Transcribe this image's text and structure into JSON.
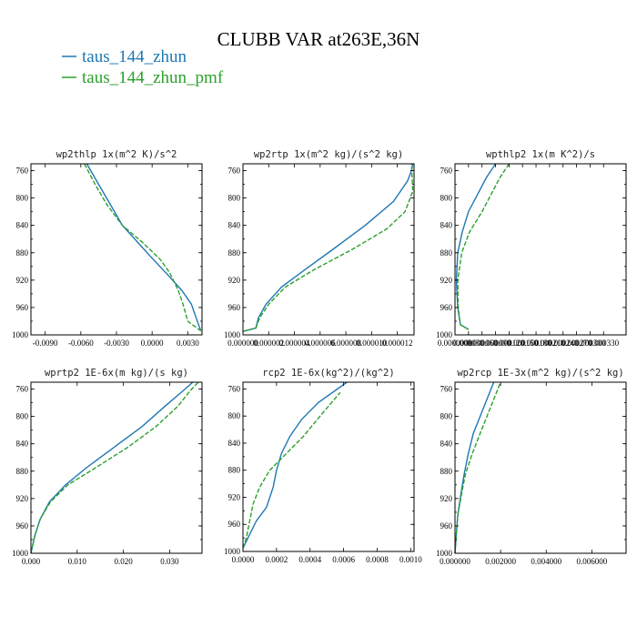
{
  "title": "CLUBB VAR at263E,36N",
  "colors": {
    "zhun": "#1f77b4",
    "pmf": "#2ca02c"
  },
  "legend": [
    {
      "label": "taus_144_zhun",
      "series": "zhun"
    },
    {
      "label": "taus_144_zhun_pmf",
      "series": "pmf"
    }
  ],
  "chart_data": [
    {
      "type": "line",
      "title": "wp2thlp  1x(m^2 K)/s^2",
      "xlim": [
        -0.0102,
        0.0042
      ],
      "ylim": [
        750,
        1000
      ],
      "xticks": [
        -0.009,
        -0.006,
        -0.003,
        0.0,
        0.003
      ],
      "xtick_labels": [
        "-0.0090",
        "-0.0060",
        "-0.0030",
        "0.0000",
        "0.0030"
      ],
      "yticks": [
        760,
        800,
        840,
        880,
        920,
        960,
        1000
      ],
      "ytick_labels": [
        "760",
        "800",
        "840",
        "880",
        "920",
        "960",
        "1000"
      ],
      "series": [
        {
          "name": "taus_144_zhun",
          "color": "zhun",
          "dashed": false,
          "x": [
            -0.0055,
            -0.0045,
            -0.0035,
            -0.0025,
            -0.0012,
            0.0,
            0.0012,
            0.0025,
            0.0033,
            0.0037,
            0.0041
          ],
          "y": [
            750,
            780,
            810,
            840,
            865,
            888,
            910,
            935,
            955,
            975,
            994
          ]
        },
        {
          "name": "taus_144_zhun_pmf",
          "color": "pmf",
          "dashed": true,
          "x": [
            -0.0057,
            -0.0048,
            -0.0038,
            -0.0025,
            -0.0008,
            0.0007,
            0.0015,
            0.0022,
            0.0026,
            0.003,
            0.0041
          ],
          "y": [
            750,
            780,
            810,
            840,
            865,
            890,
            910,
            935,
            955,
            980,
            994
          ]
        }
      ]
    },
    {
      "type": "line",
      "title": "wp2rtp  1x(m^2 kg)/(s^2 kg)",
      "xlim": [
        0.0,
        1.33e-05
      ],
      "ylim": [
        750,
        1000
      ],
      "xticks": [
        0.0,
        2e-06,
        4e-06,
        6e-06,
        8e-06,
        1e-05,
        1.2e-05
      ],
      "xtick_labels": [
        "0.000000",
        "0.000002",
        "0.000004",
        "0.000006",
        "0.000008",
        "0.000010",
        "0.000012"
      ],
      "yticks": [
        760,
        800,
        840,
        880,
        920,
        960,
        1000
      ],
      "ytick_labels": [
        "760",
        "800",
        "840",
        "880",
        "920",
        "960",
        "1000"
      ],
      "series": [
        {
          "name": "taus_144_zhun",
          "color": "zhun",
          "dashed": false,
          "x": [
            0.0,
            1e-06,
            1.2e-06,
            1.8e-06,
            3e-06,
            4.8e-06,
            7e-06,
            9.5e-06,
            1.17e-05,
            1.28e-05,
            1.31e-05,
            1.32e-05
          ],
          "y": [
            995,
            990,
            975,
            955,
            930,
            905,
            875,
            840,
            805,
            775,
            760,
            750
          ]
        },
        {
          "name": "taus_144_zhun_pmf",
          "color": "pmf",
          "dashed": true,
          "x": [
            0.0,
            1e-06,
            1.3e-06,
            2e-06,
            3.3e-06,
            5.5e-06,
            8.5e-06,
            1.12e-05,
            1.26e-05,
            1.32e-05,
            1.31e-05
          ],
          "y": [
            995,
            990,
            975,
            955,
            930,
            905,
            875,
            845,
            820,
            790,
            750
          ]
        }
      ]
    },
    {
      "type": "line",
      "title": "wpthlp2  1x(m K^2)/s",
      "xlim": [
        0.0,
        0.00038
      ],
      "ylim": [
        750,
        1000
      ],
      "xticks": [
        0.0,
        3e-05,
        6e-05,
        9e-05,
        0.00012,
        0.00015,
        0.00018,
        0.00021,
        0.00024,
        0.00027,
        0.0003,
        0.00033
      ],
      "xtick_labels": [
        "0.0000000",
        "0.000030",
        "0.000060",
        "0.000090",
        "0.000120",
        "0.000150",
        "0.000180",
        "0.000210",
        "0.000240",
        "0.000270",
        "0.000300",
        "0.000330"
      ],
      "yticks": [
        760,
        800,
        840,
        880,
        920,
        960,
        1000
      ],
      "ytick_labels": [
        "760",
        "800",
        "840",
        "880",
        "920",
        "960",
        "1000"
      ],
      "series": [
        {
          "name": "taus_144_zhun",
          "color": "zhun",
          "dashed": false,
          "x": [
            3e-05,
            1.2e-05,
            6e-06,
            3e-06,
            6e-06,
            1.6e-05,
            3e-05,
            5e-05,
            7e-05,
            9e-05
          ],
          "y": [
            992,
            985,
            960,
            920,
            880,
            850,
            820,
            795,
            770,
            750
          ]
        },
        {
          "name": "taus_144_zhun_pmf",
          "color": "pmf",
          "dashed": true,
          "x": [
            3e-05,
            1.2e-05,
            7e-06,
            6e-06,
            1.5e-05,
            3.2e-05,
            6e-05,
            8e-05,
            0.0001,
            0.00012
          ],
          "y": [
            992,
            985,
            960,
            920,
            880,
            850,
            820,
            795,
            770,
            750
          ]
        }
      ]
    },
    {
      "type": "line",
      "title": "wprtp2  1E-6x(m kg)/(s kg)",
      "xlim": [
        0.0,
        0.037
      ],
      "ylim": [
        750,
        1000
      ],
      "xticks": [
        0.0,
        0.01,
        0.02,
        0.03
      ],
      "xtick_labels": [
        "0.000",
        "0.010",
        "0.020",
        "0.030"
      ],
      "yticks": [
        760,
        800,
        840,
        880,
        920,
        960,
        1000
      ],
      "ytick_labels": [
        "760",
        "800",
        "840",
        "880",
        "920",
        "960",
        "1000"
      ],
      "series": [
        {
          "name": "taus_144_zhun",
          "color": "zhun",
          "dashed": false,
          "x": [
            0.0,
            0.0008,
            0.002,
            0.004,
            0.0075,
            0.012,
            0.018,
            0.024,
            0.029,
            0.033,
            0.035
          ],
          "y": [
            1000,
            975,
            950,
            925,
            900,
            875,
            845,
            815,
            785,
            762,
            750
          ]
        },
        {
          "name": "taus_144_zhun_pmf",
          "color": "pmf",
          "dashed": true,
          "x": [
            0.0,
            0.0008,
            0.002,
            0.0042,
            0.008,
            0.014,
            0.021,
            0.027,
            0.0318,
            0.0345,
            0.0362
          ],
          "y": [
            1000,
            975,
            950,
            925,
            900,
            875,
            845,
            815,
            785,
            762,
            750
          ]
        }
      ]
    },
    {
      "type": "line",
      "title": "rcp2  1E-6x(kg^2)/(kg^2)",
      "xlim": [
        0.0,
        0.00102
      ],
      "ylim": [
        750,
        1000
      ],
      "xticks": [
        0.0,
        0.0002,
        0.0004,
        0.0006,
        0.0008,
        0.001
      ],
      "xtick_labels": [
        "0.0000",
        "0.0002",
        "0.0004",
        "0.0006",
        "0.0008",
        "0.0010"
      ],
      "yticks": [
        760,
        800,
        840,
        880,
        920,
        960,
        1000
      ],
      "ytick_labels": [
        "760",
        "800",
        "840",
        "880",
        "920",
        "960",
        "1000"
      ],
      "series": [
        {
          "name": "taus_144_zhun",
          "color": "zhun",
          "dashed": false,
          "x": [
            0.0,
            3e-05,
            8e-05,
            0.00014,
            0.00018,
            0.0002,
            0.00023,
            0.00028,
            0.00035,
            0.00045,
            0.00062
          ],
          "y": [
            995,
            980,
            955,
            935,
            905,
            880,
            855,
            830,
            805,
            780,
            750
          ]
        },
        {
          "name": "taus_144_zhun_pmf",
          "color": "pmf",
          "dashed": true,
          "x": [
            0.0,
            2e-05,
            4e-05,
            6e-05,
            0.0001,
            0.00016,
            0.00026,
            0.00036,
            0.00046,
            0.00058
          ],
          "y": [
            995,
            980,
            955,
            930,
            905,
            880,
            855,
            830,
            800,
            765
          ]
        }
      ]
    },
    {
      "type": "line",
      "title": "wp2rcp  1E-3x(m^2 kg)/(s^2 kg)",
      "xlim": [
        0.0,
        0.0075
      ],
      "ylim": [
        750,
        1000
      ],
      "xticks": [
        0.0,
        0.002,
        0.004,
        0.006
      ],
      "xtick_labels": [
        "0.000000",
        "0.002000",
        "0.004000",
        "0.006000"
      ],
      "yticks": [
        760,
        800,
        840,
        880,
        920,
        960,
        1000
      ],
      "ytick_labels": [
        "760",
        "800",
        "840",
        "880",
        "920",
        "960",
        "1000"
      ],
      "series": [
        {
          "name": "taus_144_zhun",
          "color": "zhun",
          "dashed": false,
          "x": [
            0.0,
            5e-05,
            0.00012,
            0.00025,
            0.0004,
            0.00058,
            0.0008,
            0.0011,
            0.0014,
            0.0017
          ],
          "y": [
            1000,
            975,
            945,
            915,
            885,
            855,
            825,
            800,
            775,
            750
          ]
        },
        {
          "name": "taus_144_zhun_pmf",
          "color": "pmf",
          "dashed": true,
          "x": [
            0.0,
            5e-05,
            0.00012,
            0.00028,
            0.00045,
            0.00075,
            0.0011,
            0.0014,
            0.0017,
            0.002
          ],
          "y": [
            1000,
            975,
            945,
            915,
            885,
            855,
            825,
            800,
            775,
            750
          ]
        }
      ]
    }
  ]
}
